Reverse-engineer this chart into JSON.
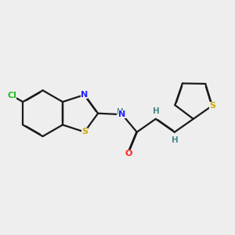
{
  "background_color": "#eeeeee",
  "bond_color": "#1a1a1a",
  "atom_colors": {
    "Cl": "#22bb22",
    "N": "#2222ff",
    "S_benzo": "#ccaa00",
    "S_thienyl": "#ccaa00",
    "O": "#ff2222",
    "H": "#4a8888",
    "C": "#1a1a1a"
  },
  "lw": 1.6,
  "figsize": [
    3.0,
    3.0
  ],
  "dpi": 100
}
